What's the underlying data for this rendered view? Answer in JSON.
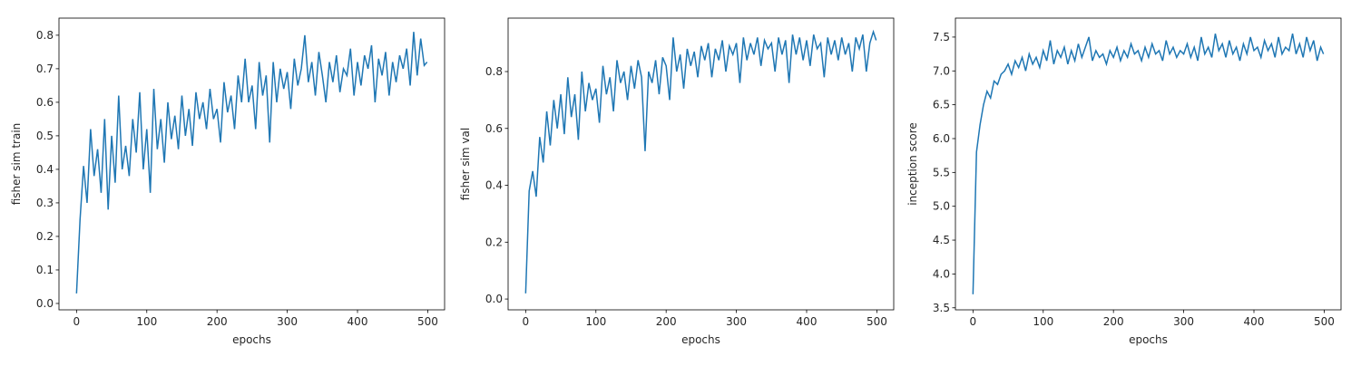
{
  "chart_data": [
    {
      "type": "line",
      "xlabel": "epochs",
      "ylabel": "fisher sim train",
      "color": "#1f77b4",
      "x": [
        0,
        5,
        10,
        15,
        20,
        25,
        30,
        35,
        40,
        45,
        50,
        55,
        60,
        65,
        70,
        75,
        80,
        85,
        90,
        95,
        100,
        105,
        110,
        115,
        120,
        125,
        130,
        135,
        140,
        145,
        150,
        155,
        160,
        165,
        170,
        175,
        180,
        185,
        190,
        195,
        200,
        205,
        210,
        215,
        220,
        225,
        230,
        235,
        240,
        245,
        250,
        255,
        260,
        265,
        270,
        275,
        280,
        285,
        290,
        295,
        300,
        305,
        310,
        315,
        320,
        325,
        330,
        335,
        340,
        345,
        350,
        355,
        360,
        365,
        370,
        375,
        380,
        385,
        390,
        395,
        400,
        405,
        410,
        415,
        420,
        425,
        430,
        435,
        440,
        445,
        450,
        455,
        460,
        465,
        470,
        475,
        480,
        485,
        490,
        495,
        499
      ],
      "values": [
        0.03,
        0.25,
        0.41,
        0.3,
        0.52,
        0.38,
        0.46,
        0.33,
        0.55,
        0.28,
        0.5,
        0.36,
        0.62,
        0.4,
        0.47,
        0.38,
        0.55,
        0.45,
        0.63,
        0.4,
        0.52,
        0.33,
        0.64,
        0.46,
        0.55,
        0.42,
        0.6,
        0.49,
        0.56,
        0.46,
        0.62,
        0.5,
        0.58,
        0.47,
        0.63,
        0.55,
        0.6,
        0.52,
        0.64,
        0.55,
        0.58,
        0.48,
        0.66,
        0.57,
        0.62,
        0.52,
        0.68,
        0.6,
        0.73,
        0.6,
        0.65,
        0.52,
        0.72,
        0.62,
        0.68,
        0.48,
        0.72,
        0.6,
        0.7,
        0.64,
        0.69,
        0.58,
        0.73,
        0.65,
        0.7,
        0.8,
        0.66,
        0.72,
        0.62,
        0.75,
        0.68,
        0.6,
        0.72,
        0.66,
        0.74,
        0.63,
        0.7,
        0.68,
        0.76,
        0.62,
        0.72,
        0.65,
        0.74,
        0.7,
        0.77,
        0.6,
        0.73,
        0.68,
        0.75,
        0.62,
        0.72,
        0.66,
        0.74,
        0.7,
        0.76,
        0.65,
        0.81,
        0.68,
        0.79,
        0.71,
        0.72
      ],
      "xlim": [
        -25,
        524
      ],
      "xticks": [
        0,
        100,
        200,
        300,
        400,
        500
      ],
      "ylim": [
        -0.019,
        0.851
      ],
      "yticks": [
        {
          "value": 0,
          "label": "0.0"
        },
        0.1,
        0.2,
        0.3,
        0.4,
        0.5,
        0.6,
        0.7,
        0.8
      ]
    },
    {
      "type": "line",
      "xlabel": "epochs",
      "ylabel": "fisher sim val",
      "color": "#1f77b4",
      "x": [
        0,
        5,
        10,
        15,
        20,
        25,
        30,
        35,
        40,
        45,
        50,
        55,
        60,
        65,
        70,
        75,
        80,
        85,
        90,
        95,
        100,
        105,
        110,
        115,
        120,
        125,
        130,
        135,
        140,
        145,
        150,
        155,
        160,
        165,
        170,
        175,
        180,
        185,
        190,
        195,
        200,
        205,
        210,
        215,
        220,
        225,
        230,
        235,
        240,
        245,
        250,
        255,
        260,
        265,
        270,
        275,
        280,
        285,
        290,
        295,
        300,
        305,
        310,
        315,
        320,
        325,
        330,
        335,
        340,
        345,
        350,
        355,
        360,
        365,
        370,
        375,
        380,
        385,
        390,
        395,
        400,
        405,
        410,
        415,
        420,
        425,
        430,
        435,
        440,
        445,
        450,
        455,
        460,
        465,
        470,
        475,
        480,
        485,
        490,
        495,
        499
      ],
      "values": [
        0.02,
        0.38,
        0.45,
        0.36,
        0.57,
        0.48,
        0.66,
        0.54,
        0.7,
        0.6,
        0.72,
        0.58,
        0.78,
        0.64,
        0.72,
        0.56,
        0.8,
        0.66,
        0.76,
        0.7,
        0.74,
        0.62,
        0.82,
        0.72,
        0.78,
        0.66,
        0.84,
        0.76,
        0.8,
        0.7,
        0.82,
        0.74,
        0.84,
        0.78,
        0.52,
        0.8,
        0.76,
        0.84,
        0.72,
        0.85,
        0.82,
        0.7,
        0.92,
        0.8,
        0.86,
        0.74,
        0.88,
        0.82,
        0.87,
        0.78,
        0.89,
        0.84,
        0.9,
        0.78,
        0.88,
        0.84,
        0.91,
        0.8,
        0.89,
        0.86,
        0.9,
        0.76,
        0.92,
        0.84,
        0.9,
        0.86,
        0.92,
        0.82,
        0.91,
        0.88,
        0.9,
        0.8,
        0.92,
        0.86,
        0.91,
        0.76,
        0.93,
        0.86,
        0.92,
        0.84,
        0.91,
        0.82,
        0.93,
        0.88,
        0.9,
        0.78,
        0.92,
        0.86,
        0.91,
        0.84,
        0.92,
        0.86,
        0.9,
        0.8,
        0.92,
        0.88,
        0.93,
        0.8,
        0.9,
        0.94,
        0.91
      ],
      "xlim": [
        -25,
        524
      ],
      "xticks": [
        0,
        100,
        200,
        300,
        400,
        500
      ],
      "ylim": [
        -0.038,
        0.988
      ],
      "yticks": [
        {
          "value": 0,
          "label": "0.0"
        },
        0.2,
        0.4,
        0.6,
        0.8
      ]
    },
    {
      "type": "line",
      "xlabel": "epochs",
      "ylabel": "inception score",
      "color": "#1f77b4",
      "x": [
        0,
        5,
        10,
        15,
        20,
        25,
        30,
        35,
        40,
        45,
        50,
        55,
        60,
        65,
        70,
        75,
        80,
        85,
        90,
        95,
        100,
        105,
        110,
        115,
        120,
        125,
        130,
        135,
        140,
        145,
        150,
        155,
        160,
        165,
        170,
        175,
        180,
        185,
        190,
        195,
        200,
        205,
        210,
        215,
        220,
        225,
        230,
        235,
        240,
        245,
        250,
        255,
        260,
        265,
        270,
        275,
        280,
        285,
        290,
        295,
        300,
        305,
        310,
        315,
        320,
        325,
        330,
        335,
        340,
        345,
        350,
        355,
        360,
        365,
        370,
        375,
        380,
        385,
        390,
        395,
        400,
        405,
        410,
        415,
        420,
        425,
        430,
        435,
        440,
        445,
        450,
        455,
        460,
        465,
        470,
        475,
        480,
        485,
        490,
        495,
        499
      ],
      "values": [
        3.7,
        5.8,
        6.2,
        6.5,
        6.7,
        6.6,
        6.85,
        6.8,
        6.95,
        7.0,
        7.1,
        6.95,
        7.15,
        7.05,
        7.2,
        7.0,
        7.25,
        7.1,
        7.2,
        7.05,
        7.3,
        7.15,
        7.45,
        7.1,
        7.3,
        7.2,
        7.35,
        7.1,
        7.3,
        7.15,
        7.4,
        7.2,
        7.35,
        7.5,
        7.15,
        7.3,
        7.2,
        7.25,
        7.1,
        7.3,
        7.2,
        7.35,
        7.15,
        7.3,
        7.2,
        7.4,
        7.25,
        7.3,
        7.15,
        7.35,
        7.2,
        7.4,
        7.25,
        7.3,
        7.15,
        7.45,
        7.25,
        7.35,
        7.2,
        7.3,
        7.25,
        7.4,
        7.2,
        7.35,
        7.15,
        7.5,
        7.25,
        7.35,
        7.2,
        7.55,
        7.3,
        7.4,
        7.2,
        7.45,
        7.25,
        7.35,
        7.15,
        7.4,
        7.25,
        7.5,
        7.3,
        7.35,
        7.2,
        7.45,
        7.3,
        7.4,
        7.2,
        7.5,
        7.25,
        7.35,
        7.3,
        7.55,
        7.25,
        7.4,
        7.2,
        7.5,
        7.3,
        7.45,
        7.15,
        7.35,
        7.25
      ],
      "xlim": [
        -25,
        524
      ],
      "xticks": [
        0,
        100,
        200,
        300,
        400,
        500
      ],
      "ylim": [
        3.47,
        7.78
      ],
      "yticks": [
        3.5,
        {
          "value": 4,
          "label": "4.0"
        },
        4.5,
        {
          "value": 5,
          "label": "5.0"
        },
        5.5,
        {
          "value": 6,
          "label": "6.0"
        },
        6.5,
        {
          "value": 7,
          "label": "7.0"
        },
        7.5
      ]
    }
  ]
}
